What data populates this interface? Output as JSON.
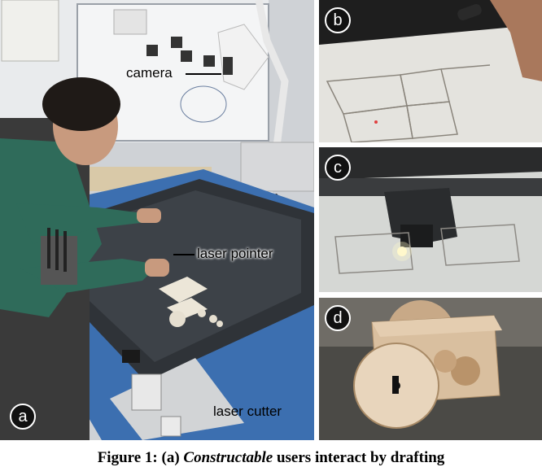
{
  "figure": {
    "panels": {
      "a": {
        "badge": "a",
        "callouts": {
          "camera": "camera",
          "laser_pointer": "laser pointer",
          "laser_cutter": "laser cutter"
        }
      },
      "b": {
        "badge": "b"
      },
      "c": {
        "badge": "c"
      },
      "d": {
        "badge": "d"
      }
    },
    "caption": {
      "prefix": "Figure 1: (a) ",
      "emphasis": "Constructable",
      "suffix": " users interact by drafting"
    }
  }
}
